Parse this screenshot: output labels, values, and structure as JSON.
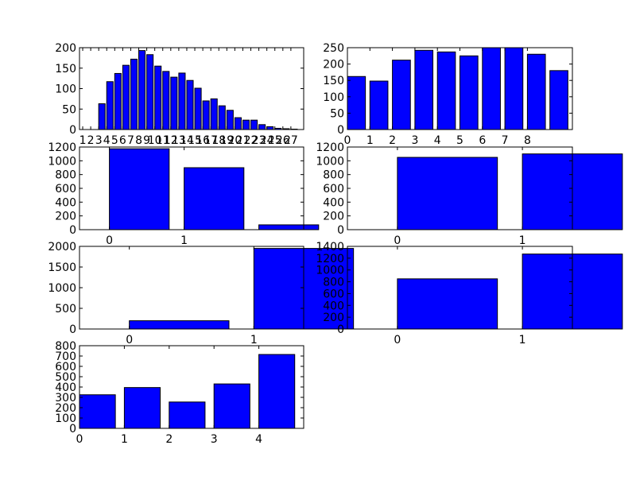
{
  "theme": {
    "bar_fill": "#0000ff",
    "bar_edge": "#000000",
    "axes_edge": "#000000",
    "background": "#ffffff"
  },
  "chart_data": [
    {
      "type": "bar",
      "x": [
        3,
        4,
        5,
        6,
        7,
        8,
        9,
        10,
        11,
        12,
        13,
        14,
        15,
        16,
        17,
        18,
        19,
        20,
        21,
        22,
        23,
        24,
        25,
        26,
        27
      ],
      "values": [
        63,
        117,
        137,
        157,
        172,
        193,
        183,
        155,
        142,
        128,
        138,
        120,
        101,
        70,
        75,
        58,
        47,
        29,
        23,
        23,
        12,
        7,
        3,
        2,
        1
      ],
      "ylim": [
        0,
        200
      ],
      "yticks": [
        0,
        50,
        100,
        150,
        200
      ],
      "xticks": [
        1,
        2,
        3,
        4,
        5,
        6,
        7,
        8,
        9,
        10,
        11,
        12,
        13,
        14,
        15,
        16,
        17,
        18,
        19,
        20,
        21,
        22,
        23,
        24,
        25,
        26,
        27
      ],
      "xticklabels": [
        "1",
        "2",
        "3",
        "4",
        "5",
        "6",
        "7",
        "8",
        "9",
        "10",
        "11",
        "12",
        "13",
        "14",
        "15",
        "16",
        "17",
        "18",
        "19",
        "20",
        "21",
        "22",
        "23",
        "24",
        "25",
        "26",
        "27"
      ],
      "grid": false
    },
    {
      "type": "bar",
      "x": [
        0,
        1,
        2,
        3,
        4,
        5,
        6,
        7,
        8,
        9
      ],
      "values": [
        162,
        148,
        212,
        242,
        237,
        225,
        250,
        250,
        230,
        180
      ],
      "ylim": [
        0,
        250
      ],
      "yticks": [
        0,
        50,
        100,
        150,
        200,
        250
      ],
      "xticks": [
        0,
        1,
        2,
        3,
        4,
        5,
        6,
        7,
        8
      ],
      "xticklabels": [
        "0",
        "1",
        "2",
        "3",
        "4",
        "5",
        "6",
        "7",
        "8"
      ],
      "grid": false
    },
    {
      "type": "bar",
      "x": [
        0,
        1,
        2
      ],
      "values": [
        1175,
        900,
        70
      ],
      "ylim": [
        0,
        1200
      ],
      "yticks": [
        0,
        200,
        400,
        600,
        800,
        1000,
        1200
      ],
      "xticks": [
        0,
        1
      ],
      "xticklabels": [
        "0",
        "1"
      ],
      "grid": false
    },
    {
      "type": "bar",
      "x": [
        0,
        1
      ],
      "values": [
        1050,
        1100
      ],
      "ylim": [
        0,
        1200
      ],
      "yticks": [
        0,
        200,
        400,
        600,
        800,
        1000,
        1200
      ],
      "xticks": [
        0,
        1
      ],
      "xticklabels": [
        "0",
        "1"
      ],
      "grid": false
    },
    {
      "type": "bar",
      "x": [
        0,
        1
      ],
      "values": [
        200,
        1950
      ],
      "ylim": [
        0,
        2000
      ],
      "yticks": [
        0,
        500,
        1000,
        1500,
        2000
      ],
      "xticks": [
        0,
        1
      ],
      "xticklabels": [
        "0",
        "1"
      ],
      "grid": false
    },
    {
      "type": "bar",
      "x": [
        0,
        1
      ],
      "values": [
        850,
        1270
      ],
      "ylim": [
        0,
        1400
      ],
      "yticks": [
        0,
        200,
        400,
        600,
        800,
        1000,
        1200,
        1400
      ],
      "xticks": [
        0,
        1
      ],
      "xticklabels": [
        "0",
        "1"
      ],
      "grid": false
    },
    {
      "type": "bar",
      "x": [
        0,
        1,
        2,
        3,
        4
      ],
      "values": [
        325,
        395,
        255,
        430,
        715
      ],
      "ylim": [
        0,
        800
      ],
      "yticks": [
        0,
        100,
        200,
        300,
        400,
        500,
        600,
        700,
        800
      ],
      "xticks": [
        0,
        1,
        2,
        3,
        4
      ],
      "xticklabels": [
        "0",
        "1",
        "2",
        "3",
        "4"
      ],
      "grid": false
    }
  ]
}
